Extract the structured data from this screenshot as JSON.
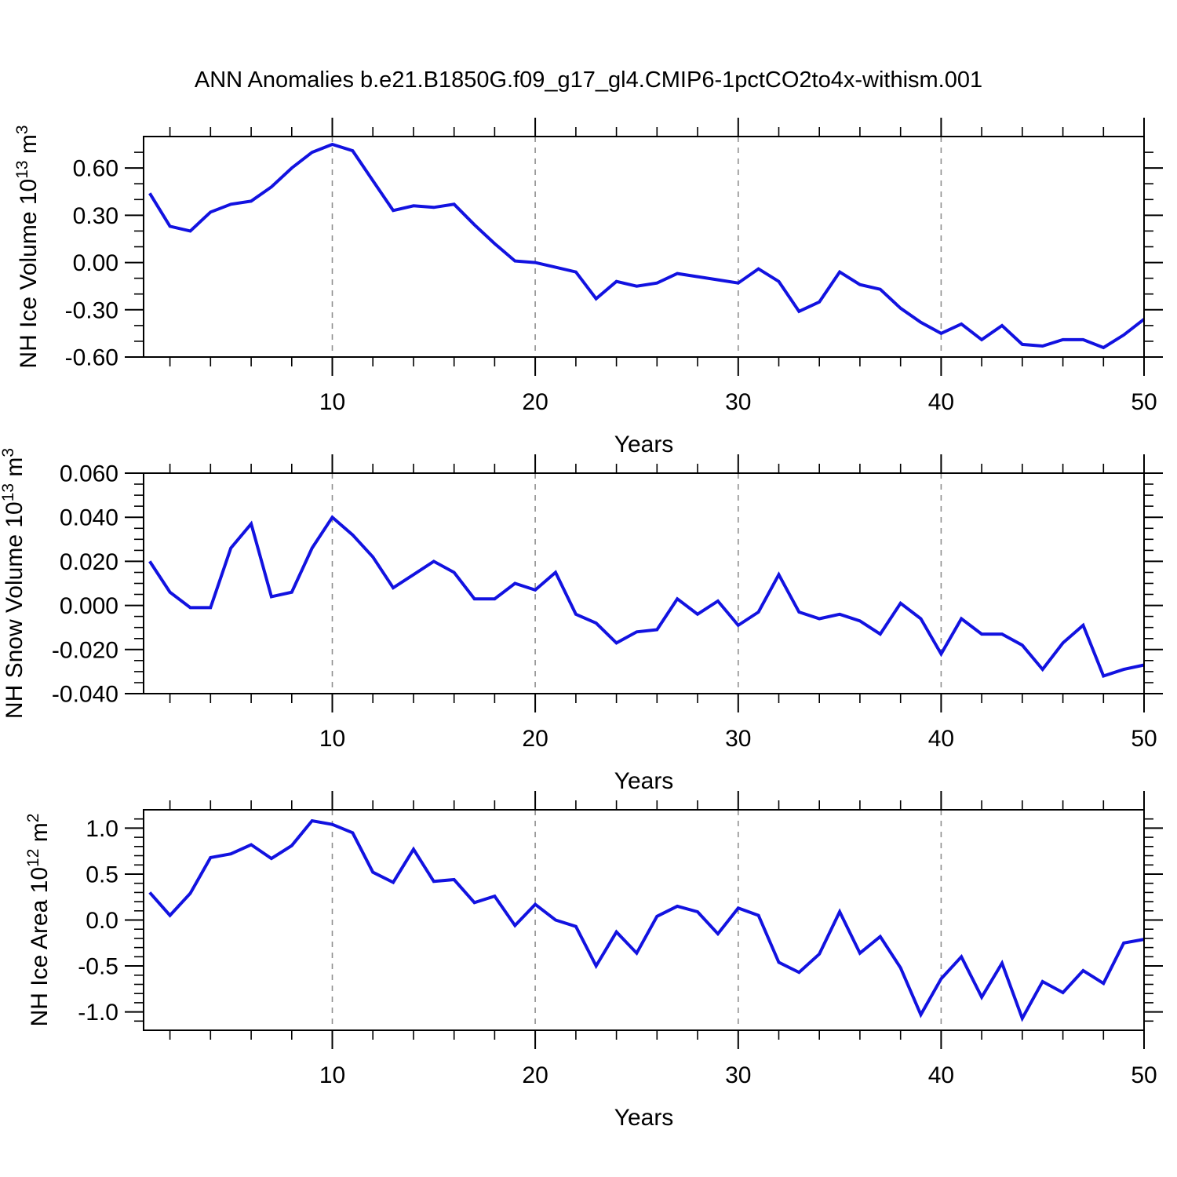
{
  "title": "ANN Anomalies b.e21.B1850G.f09_g17_gl4.CMIP6-1pctCO2to4x-withism.001",
  "colors": {
    "line": "#1212e0",
    "gridline": "#8f8f8f",
    "axis": "#000000",
    "background": "#ffffff",
    "text": "#000000"
  },
  "chart_data": [
    {
      "type": "line",
      "name": "nh-ice-volume",
      "ylabel_plain": "NH Ice Volume 10^13 m^3",
      "ylabel_parts": [
        [
          "NH Ice Volume 10",
          false
        ],
        [
          "13",
          true
        ],
        [
          " m",
          false
        ],
        [
          "3",
          true
        ]
      ],
      "xlabel": "Years",
      "xlim": [
        0.7,
        50
      ],
      "ylim": [
        -0.6,
        0.8
      ],
      "x_ticks_major": [
        10,
        20,
        30,
        40,
        50
      ],
      "x_minor_step": 2,
      "gridlines_x": [
        10,
        20,
        30,
        40
      ],
      "y_ticks_major": [
        0.6,
        0.3,
        0.0,
        -0.3,
        -0.6
      ],
      "y_minor_step": 0.1,
      "y_decimals": 2,
      "x": [
        1,
        2,
        3,
        4,
        5,
        6,
        7,
        8,
        9,
        10,
        11,
        12,
        13,
        14,
        15,
        16,
        17,
        18,
        19,
        20,
        21,
        22,
        23,
        24,
        25,
        26,
        27,
        28,
        29,
        30,
        31,
        32,
        33,
        34,
        35,
        36,
        37,
        38,
        39,
        40,
        41,
        42,
        43,
        44,
        45,
        46,
        47,
        48,
        49,
        50
      ],
      "values": [
        0.44,
        0.23,
        0.2,
        0.32,
        0.37,
        0.39,
        0.48,
        0.6,
        0.7,
        0.75,
        0.71,
        0.52,
        0.33,
        0.36,
        0.35,
        0.37,
        0.24,
        0.12,
        0.01,
        0.0,
        -0.03,
        -0.06,
        -0.23,
        -0.12,
        -0.15,
        -0.13,
        -0.07,
        -0.09,
        -0.11,
        -0.13,
        -0.04,
        -0.12,
        -0.31,
        -0.25,
        -0.06,
        -0.14,
        -0.17,
        -0.29,
        -0.38,
        -0.45,
        -0.39,
        -0.49,
        -0.4,
        -0.52,
        -0.53,
        -0.49,
        -0.49,
        -0.54,
        -0.46,
        -0.36
      ]
    },
    {
      "type": "line",
      "name": "nh-snow-volume",
      "ylabel_plain": "NH Snow Volume 10^13 m^3",
      "ylabel_parts": [
        [
          "NH Snow Volume 10",
          false
        ],
        [
          "13",
          true
        ],
        [
          " m",
          false
        ],
        [
          "3",
          true
        ]
      ],
      "xlabel": "Years",
      "xlim": [
        0.7,
        50
      ],
      "ylim": [
        -0.04,
        0.06
      ],
      "x_ticks_major": [
        10,
        20,
        30,
        40,
        50
      ],
      "x_minor_step": 2,
      "gridlines_x": [
        10,
        20,
        30,
        40
      ],
      "y_ticks_major": [
        0.06,
        0.04,
        0.02,
        0.0,
        -0.02,
        -0.04
      ],
      "y_minor_step": 0.005,
      "y_decimals": 3,
      "x": [
        1,
        2,
        3,
        4,
        5,
        6,
        7,
        8,
        9,
        10,
        11,
        12,
        13,
        14,
        15,
        16,
        17,
        18,
        19,
        20,
        21,
        22,
        23,
        24,
        25,
        26,
        27,
        28,
        29,
        30,
        31,
        32,
        33,
        34,
        35,
        36,
        37,
        38,
        39,
        40,
        41,
        42,
        43,
        44,
        45,
        46,
        47,
        48,
        49,
        50
      ],
      "values": [
        0.02,
        0.006,
        -0.001,
        -0.001,
        0.026,
        0.037,
        0.004,
        0.006,
        0.026,
        0.04,
        0.032,
        0.022,
        0.008,
        0.014,
        0.02,
        0.015,
        0.003,
        0.003,
        0.01,
        0.007,
        0.015,
        -0.004,
        -0.008,
        -0.017,
        -0.012,
        -0.011,
        0.003,
        -0.004,
        0.002,
        -0.009,
        -0.003,
        0.014,
        -0.003,
        -0.006,
        -0.004,
        -0.007,
        -0.013,
        0.001,
        -0.006,
        -0.022,
        -0.006,
        -0.013,
        -0.013,
        -0.018,
        -0.029,
        -0.017,
        -0.009,
        -0.032,
        -0.029,
        -0.027
      ]
    },
    {
      "type": "line",
      "name": "nh-ice-area",
      "ylabel_plain": "NH Ice Area 10^12 m^2",
      "ylabel_parts": [
        [
          "NH Ice Area 10",
          false
        ],
        [
          "12",
          true
        ],
        [
          " m",
          false
        ],
        [
          "2",
          true
        ]
      ],
      "xlabel": "Years",
      "xlim": [
        0.7,
        50
      ],
      "ylim": [
        -1.2,
        1.2
      ],
      "x_ticks_major": [
        10,
        20,
        30,
        40,
        50
      ],
      "x_minor_step": 2,
      "gridlines_x": [
        10,
        20,
        30,
        40
      ],
      "y_ticks_major": [
        1.0,
        0.5,
        0.0,
        -0.5,
        -1.0
      ],
      "y_minor_step": 0.1,
      "y_decimals": 1,
      "x": [
        1,
        2,
        3,
        4,
        5,
        6,
        7,
        8,
        9,
        10,
        11,
        12,
        13,
        14,
        15,
        16,
        17,
        18,
        19,
        20,
        21,
        22,
        23,
        24,
        25,
        26,
        27,
        28,
        29,
        30,
        31,
        32,
        33,
        34,
        35,
        36,
        37,
        38,
        39,
        40,
        41,
        42,
        43,
        44,
        45,
        46,
        47,
        48,
        49,
        50
      ],
      "values": [
        0.3,
        0.05,
        0.29,
        0.68,
        0.72,
        0.82,
        0.67,
        0.81,
        1.08,
        1.04,
        0.95,
        0.52,
        0.41,
        0.77,
        0.42,
        0.44,
        0.19,
        0.26,
        -0.06,
        0.17,
        0.0,
        -0.07,
        -0.5,
        -0.13,
        -0.36,
        0.04,
        0.15,
        0.09,
        -0.15,
        0.13,
        0.05,
        -0.46,
        -0.57,
        -0.37,
        0.09,
        -0.36,
        -0.18,
        -0.52,
        -1.03,
        -0.64,
        -0.4,
        -0.84,
        -0.47,
        -1.07,
        -0.67,
        -0.79,
        -0.55,
        -0.69,
        -0.25,
        -0.21
      ]
    }
  ]
}
